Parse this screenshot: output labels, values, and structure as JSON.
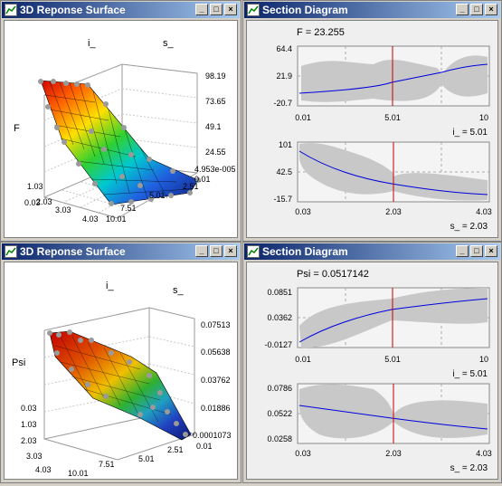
{
  "windows": [
    {
      "id": "surface1",
      "title": "3D Reponse Surface",
      "axis_x_name": "i_",
      "axis_y_name": "s_",
      "axis_z_name": "F",
      "z_ticks": [
        "98.19",
        "73.65",
        "49.1",
        "24.55",
        "4.953e-005"
      ],
      "x_ticks": [
        "0.03",
        "1.03",
        "2.03",
        "3.03",
        "4.03"
      ],
      "y_ticks": [
        "0.01",
        "2.51",
        "5.01",
        "7.51",
        "10.01"
      ]
    },
    {
      "id": "section1",
      "title": "Section Diagram",
      "readout": "F = 23.255",
      "plot1": {
        "y_ticks": [
          "64.4",
          "21.9",
          "-20.7"
        ],
        "x_ticks": [
          "0.01",
          "5.01",
          "10"
        ],
        "label": "i_ = 5.01"
      },
      "plot2": {
        "y_ticks": [
          "101",
          "42.5",
          "-15.7"
        ],
        "x_ticks": [
          "0.03",
          "2.03",
          "4.03"
        ],
        "label": "s_ = 2.03"
      }
    },
    {
      "id": "surface2",
      "title": "3D Reponse Surface",
      "axis_x_name": "i_",
      "axis_y_name": "s_",
      "axis_z_name": "Psi",
      "z_ticks": [
        "0.07513",
        "0.05638",
        "0.03762",
        "0.01886",
        "0.0001073"
      ],
      "x_ticks": [
        "0.03",
        "1.03",
        "2.03",
        "3.03",
        "4.03"
      ],
      "y_ticks": [
        "10.01",
        "7.51",
        "5.01",
        "2.51",
        "0.01"
      ]
    },
    {
      "id": "section2",
      "title": "Section Diagram",
      "readout": "Psi = 0.0517142",
      "plot1": {
        "y_ticks": [
          "0.0851",
          "0.0362",
          "-0.0127"
        ],
        "x_ticks": [
          "0.01",
          "5.01",
          "10"
        ],
        "label": "i_ = 5.01"
      },
      "plot2": {
        "y_ticks": [
          "0.0786",
          "0.0522",
          "0.0258"
        ],
        "x_ticks": [
          "0.03",
          "2.03",
          "4.03"
        ],
        "label": "s_ = 2.03"
      }
    }
  ],
  "title_buttons": {
    "minimize": "_",
    "maximize": "□",
    "close": "×"
  },
  "colors": {
    "title_start": "#0a246a",
    "title_end": "#a6caf0",
    "band": "#c8c8c8",
    "curve": "#0000dd",
    "cursor": "#c00000"
  }
}
